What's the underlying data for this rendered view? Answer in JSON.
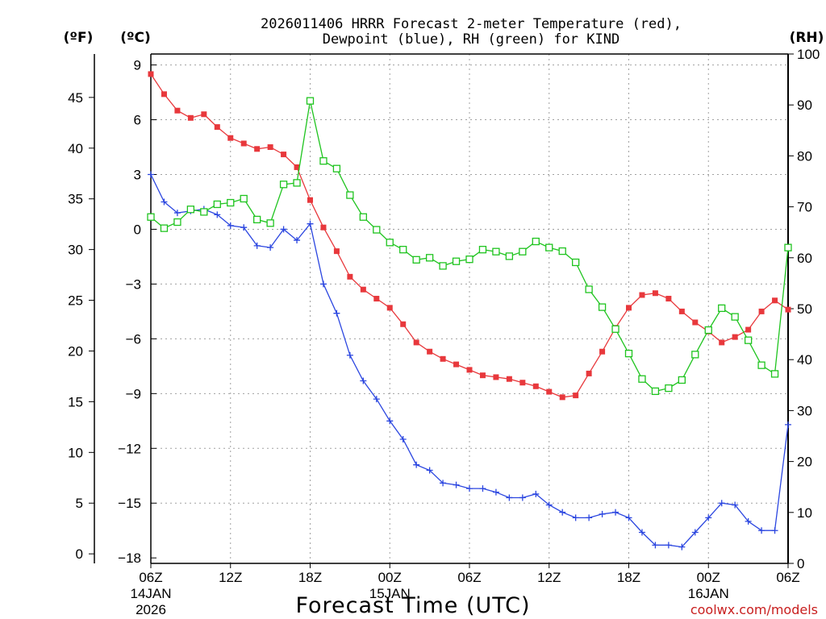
{
  "chart_data": {
    "type": "line",
    "title_line1": "2026011406 HRRR Forecast 2-meter Temperature (red),",
    "title_line2": "Dewpoint (blue), RH (green) for KIND",
    "xlabel": "Forecast Time (UTC)",
    "unit_left_f": "(ºF)",
    "unit_left_c": "(ºC)",
    "unit_right": "(RH)",
    "watermark": "coolwx.com/models",
    "x_ticks": [
      {
        "hour": 0,
        "label": "06Z",
        "sub1": "14JAN",
        "sub2": "2026"
      },
      {
        "hour": 6,
        "label": "12Z"
      },
      {
        "hour": 12,
        "label": "18Z"
      },
      {
        "hour": 18,
        "label": "00Z",
        "sub1": "15JAN"
      },
      {
        "hour": 24,
        "label": "06Z"
      },
      {
        "hour": 30,
        "label": "12Z"
      },
      {
        "hour": 36,
        "label": "18Z"
      },
      {
        "hour": 42,
        "label": "00Z",
        "sub1": "16JAN"
      },
      {
        "hour": 48,
        "label": "06Z"
      }
    ],
    "x_range": [
      0,
      48
    ],
    "c_ticks": [
      "9",
      "6",
      "3",
      "0",
      "−3",
      "−6",
      "−9",
      "−12",
      "−15",
      "−18"
    ],
    "c_tick_values": [
      9,
      6,
      3,
      0,
      -3,
      -6,
      -9,
      -12,
      -15,
      -18
    ],
    "c_range": [
      -18.3,
      9.6
    ],
    "f_ticks": [
      "45",
      "40",
      "35",
      "30",
      "25",
      "20",
      "15",
      "10",
      "5",
      "0"
    ],
    "f_tick_values": [
      45,
      40,
      35,
      30,
      25,
      20,
      15,
      10,
      5,
      0
    ],
    "rh_ticks": [
      "100",
      "90",
      "80",
      "70",
      "60",
      "50",
      "40",
      "30",
      "20",
      "10",
      "0"
    ],
    "rh_tick_values": [
      100,
      90,
      80,
      70,
      60,
      50,
      40,
      30,
      20,
      10,
      0
    ],
    "rh_range": [
      0,
      100
    ],
    "series": [
      {
        "name": "Temperature",
        "unit": "C",
        "color": "#e8383c",
        "marker": "filled-square",
        "values": [
          8.5,
          7.4,
          6.5,
          6.1,
          6.3,
          5.6,
          5.0,
          4.7,
          4.4,
          4.5,
          4.1,
          3.4,
          1.6,
          0.1,
          -1.2,
          -2.6,
          -3.3,
          -3.8,
          -4.3,
          -5.2,
          -6.2,
          -6.7,
          -7.1,
          -7.4,
          -7.7,
          -8.0,
          -8.1,
          -8.2,
          -8.4,
          -8.6,
          -8.9,
          -9.2,
          -9.1,
          -7.9,
          -6.7,
          -5.4,
          -4.3,
          -3.6,
          -3.5,
          -3.8,
          -4.5,
          -5.1,
          -5.6,
          -6.2,
          -5.9,
          -5.5,
          -4.5,
          -3.9,
          -4.4
        ]
      },
      {
        "name": "Dewpoint",
        "unit": "C",
        "color": "#2b46e0",
        "marker": "plus",
        "values": [
          3.0,
          1.5,
          0.9,
          1.0,
          1.1,
          0.8,
          0.2,
          0.1,
          -0.9,
          -1.0,
          0.0,
          -0.6,
          0.3,
          -3.0,
          -4.6,
          -6.9,
          -8.3,
          -9.3,
          -10.5,
          -11.5,
          -12.9,
          -13.2,
          -13.9,
          -14.0,
          -14.2,
          -14.2,
          -14.4,
          -14.7,
          -14.7,
          -14.5,
          -15.1,
          -15.5,
          -15.8,
          -15.8,
          -15.6,
          -15.5,
          -15.8,
          -16.6,
          -17.3,
          -17.3,
          -17.4,
          -16.6,
          -15.8,
          -15.0,
          -15.1,
          -16.0,
          -16.5,
          -16.5,
          -10.7
        ]
      },
      {
        "name": "RH",
        "unit": "%",
        "color": "#1fc41f",
        "marker": "open-square",
        "values": [
          68.0,
          65.8,
          67.0,
          69.5,
          69.0,
          70.5,
          70.8,
          71.6,
          67.5,
          66.8,
          74.4,
          74.7,
          90.8,
          79.0,
          77.5,
          72.3,
          68.0,
          65.5,
          63.0,
          61.6,
          59.6,
          60.0,
          58.4,
          59.3,
          59.7,
          61.6,
          61.2,
          60.3,
          61.2,
          63.2,
          62.0,
          61.3,
          59.1,
          53.8,
          50.3,
          46.0,
          41.2,
          36.2,
          33.8,
          34.4,
          36.0,
          41.0,
          45.8,
          50.1,
          48.4,
          43.8,
          38.9,
          37.2,
          62.0
        ]
      }
    ]
  }
}
